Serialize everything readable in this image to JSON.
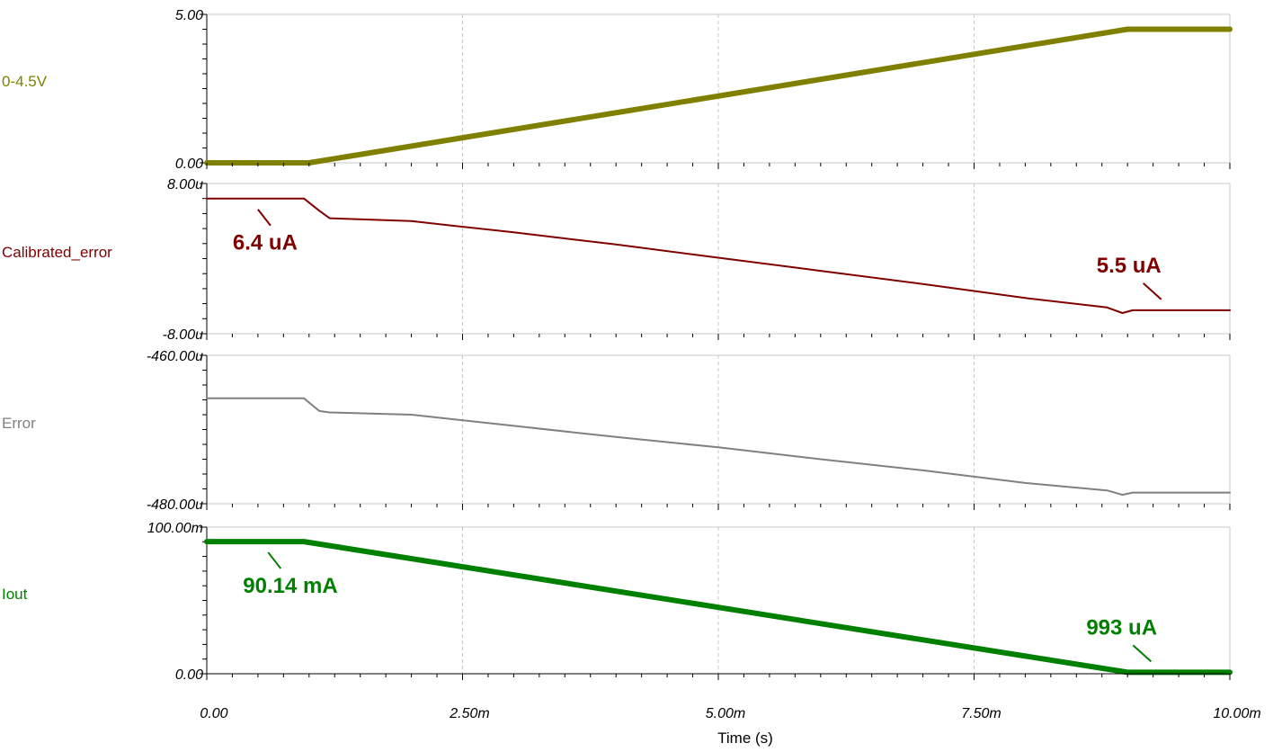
{
  "chart_data": {
    "type": "line",
    "x_unit": "s",
    "xlabel": "Time (s)",
    "xlim": [
      0,
      0.01
    ],
    "x_ticks": [
      {
        "value": 0,
        "label": "0.00"
      },
      {
        "value": 0.0025,
        "label": "2.50m"
      },
      {
        "value": 0.005,
        "label": "5.00m"
      },
      {
        "value": 0.0075,
        "label": "7.50m"
      },
      {
        "value": 0.01,
        "label": "10.00m"
      }
    ],
    "grid": "vertical dashed at x ticks",
    "panels": [
      {
        "name": "0-4.5V",
        "color": "#808000",
        "ylim": [
          0,
          5
        ],
        "y_tick_labels": [
          "5.00",
          "0.00"
        ],
        "x": [
          0,
          0.001,
          0.009,
          0.01
        ],
        "y": [
          0,
          0,
          4.5,
          4.5
        ],
        "annotations": []
      },
      {
        "name": "Calibrated_error",
        "color": "#800000",
        "ylim": [
          -8e-06,
          8e-06
        ],
        "y_tick_labels": [
          "8.00u",
          "-8.00u"
        ],
        "x": [
          0,
          0.00095,
          0.0011,
          0.0012,
          0.002,
          0.003,
          0.004,
          0.005,
          0.006,
          0.007,
          0.008,
          0.0088,
          0.00895,
          0.00905,
          0.01
        ],
        "y": [
          6.4e-06,
          6.4e-06,
          5.1e-06,
          4.3e-06,
          4e-06,
          2.8e-06,
          1.5e-06,
          1e-07,
          -1.3e-06,
          -2.7e-06,
          -4.2e-06,
          -5.2e-06,
          -5.8e-06,
          -5.5e-06,
          -5.5e-06
        ],
        "annotations": [
          {
            "text": "6.4 uA",
            "x": 0.0005,
            "y": 6.4e-06,
            "side": "below"
          },
          {
            "text": "5.5 uA",
            "x": 0.0094,
            "y": -5.5e-06,
            "side": "above"
          }
        ]
      },
      {
        "name": "Error",
        "color": "#808080",
        "ylim": [
          -0.00048,
          -0.00046
        ],
        "y_tick_labels": [
          "-460.00u",
          "-480.00u"
        ],
        "x": [
          0,
          0.00095,
          0.0011,
          0.0012,
          0.002,
          0.003,
          0.004,
          0.005,
          0.006,
          0.007,
          0.008,
          0.0088,
          0.00895,
          0.00905,
          0.01
        ],
        "y": [
          -0.0004658,
          -0.0004658,
          -0.0004675,
          -0.0004677,
          -0.000468,
          -0.0004695,
          -0.000471,
          -0.0004724,
          -0.000474,
          -0.0004755,
          -0.0004772,
          -0.0004782,
          -0.0004788,
          -0.0004785,
          -0.0004785
        ],
        "annotations": []
      },
      {
        "name": "Iout",
        "color": "#008000",
        "ylim": [
          0,
          0.1
        ],
        "y_tick_labels": [
          "100.00m",
          "0.00"
        ],
        "x": [
          0,
          0.00095,
          0.009,
          0.01
        ],
        "y": [
          0.09014,
          0.09014,
          0.000993,
          0.000993
        ],
        "annotations": [
          {
            "text": "90.14 mA",
            "x": 0.0006,
            "y": 0.09014,
            "side": "below"
          },
          {
            "text": "993 uA",
            "x": 0.0093,
            "y": 0.000993,
            "side": "above"
          }
        ]
      }
    ]
  }
}
